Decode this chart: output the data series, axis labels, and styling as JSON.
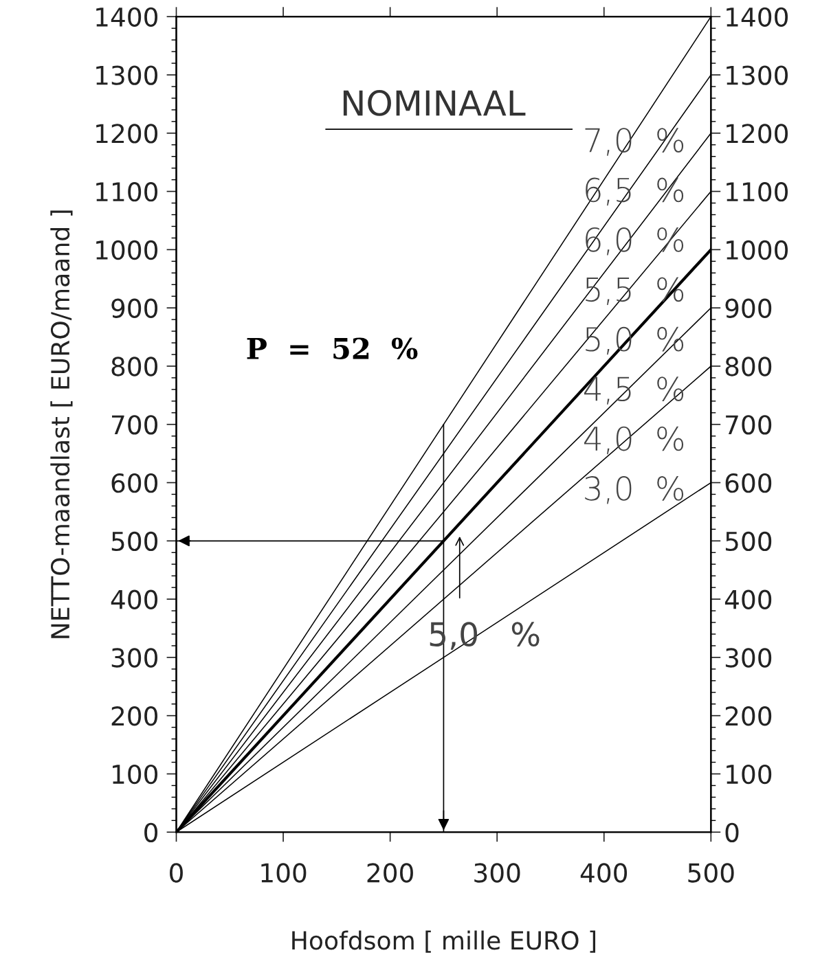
{
  "chart_data": {
    "type": "line",
    "title": "NOMINAAL",
    "xlabel": "Hoofdsom [ mille EURO ]",
    "ylabel": "NETTO-maandlast [ EURO/maand ]",
    "xlim": [
      0,
      500
    ],
    "xticks": [
      0,
      100,
      200,
      300,
      400,
      500
    ],
    "ylim": [
      0,
      1400
    ],
    "yticks": [
      0,
      100,
      200,
      300,
      400,
      500,
      600,
      700,
      800,
      900,
      1000,
      1100,
      1200,
      1300,
      1400
    ],
    "y2lim": [
      0,
      1400
    ],
    "y2ticks": [
      0,
      100,
      200,
      300,
      400,
      500,
      600,
      700,
      800,
      900,
      1000,
      1100,
      1200,
      1300,
      1400
    ],
    "x": [
      0,
      500
    ],
    "grid": false,
    "legend": false,
    "marker": "none",
    "line_style": "solid",
    "series": [
      {
        "name": "7,0  %",
        "color": "#000000",
        "values": [
          0,
          1400
        ]
      },
      {
        "name": "6,5  %",
        "color": "#000000",
        "values": [
          0,
          1300
        ]
      },
      {
        "name": "6,0  %",
        "color": "#000000",
        "values": [
          0,
          1200
        ]
      },
      {
        "name": "5,5  %",
        "color": "#000000",
        "values": [
          0,
          1100
        ]
      },
      {
        "name": "5,0  %",
        "color": "#000000",
        "values": [
          0,
          1000
        ]
      },
      {
        "name": "4,5  %",
        "color": "#000000",
        "values": [
          0,
          900
        ]
      },
      {
        "name": "4,0  %",
        "color": "#000000",
        "values": [
          0,
          800
        ]
      },
      {
        "name": "3,0  %",
        "color": "#000000",
        "values": [
          0,
          600
        ]
      }
    ],
    "ref_lines": [
      {
        "axis": "x",
        "value": 250
      },
      {
        "axis": "y",
        "value": 500
      }
    ],
    "annotations": [
      "P  =  52  %",
      "5,0   %"
    ]
  }
}
